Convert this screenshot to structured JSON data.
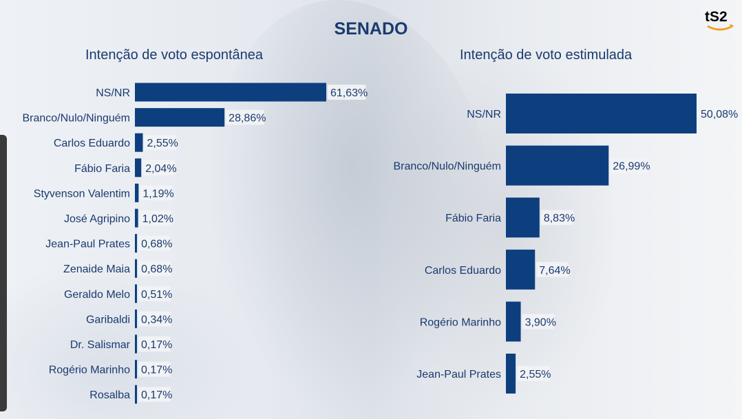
{
  "header": {
    "title": "SENADO",
    "logo_text": "tS2"
  },
  "colors": {
    "bar": "#0d3f7f",
    "text": "#1a3a6e",
    "logo": "#2d8ad4"
  },
  "chart_data": [
    {
      "type": "bar",
      "orientation": "horizontal",
      "title": "Intenção de voto espontânea",
      "categories": [
        "NS/NR",
        "Branco/Nulo/Ninguém",
        "Carlos Eduardo",
        "Fábio Faria",
        "Styvenson Valentim",
        "José Agripino",
        "Jean-Paul Prates",
        "Zenaide Maia",
        "Geraldo Melo",
        "Garibaldi",
        "Dr. Salismar",
        "Rogério Marinho",
        "Rosalba"
      ],
      "values": [
        61.63,
        28.86,
        2.55,
        2.04,
        1.19,
        1.02,
        0.68,
        0.68,
        0.51,
        0.34,
        0.17,
        0.17,
        0.17
      ],
      "labels": [
        "61,63%",
        "28,86%",
        "2,55%",
        "2,04%",
        "1,19%",
        "1,02%",
        "0,68%",
        "0,68%",
        "0,51%",
        "0,34%",
        "0,17%",
        "0,17%",
        "0,17%"
      ],
      "unit": "%"
    },
    {
      "type": "bar",
      "orientation": "horizontal",
      "title": "Intenção de voto estimulada",
      "categories": [
        "NS/NR",
        "Branco/Nulo/Ninguém",
        "Fábio Faria",
        "Carlos Eduardo",
        "Rogério Marinho",
        "Jean-Paul Prates"
      ],
      "values": [
        50.08,
        26.99,
        8.83,
        7.64,
        3.9,
        2.55
      ],
      "labels": [
        "50,08%",
        "26,99%",
        "8,83%",
        "7,64%",
        "3,90%",
        "2,55%"
      ],
      "unit": "%"
    }
  ]
}
